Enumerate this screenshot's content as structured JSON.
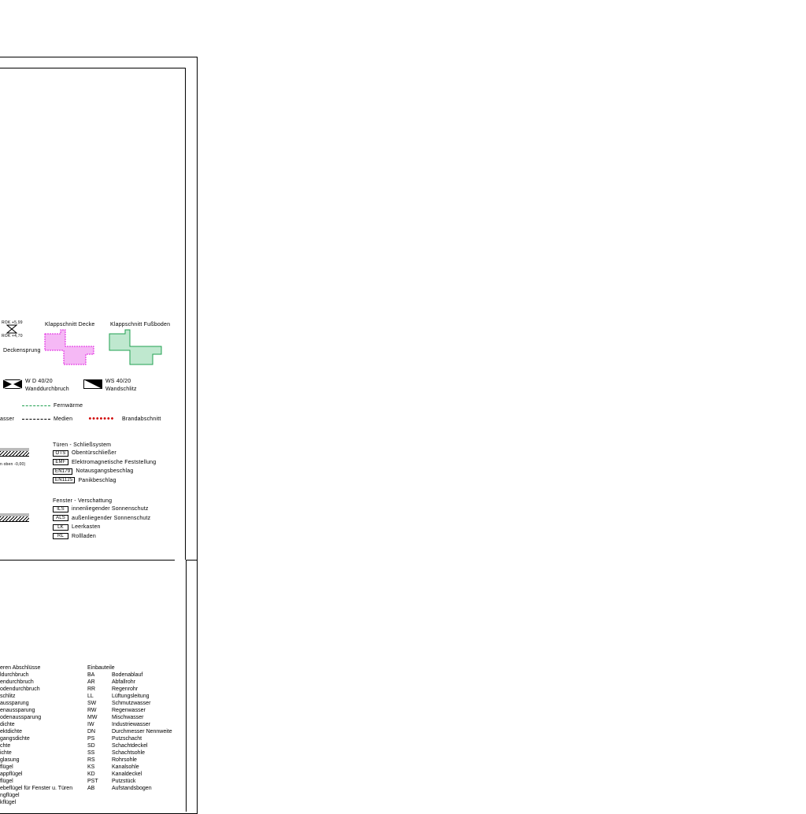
{
  "symbols": {
    "level_top": "ROK +5,99",
    "level_bottom": "ROK +4,70",
    "deckensprung": "Deckensprung",
    "klappschnitt_decke": "Klappschnitt Decke",
    "klappschnitt_fussboden": "Klappschnitt Fußboden",
    "wd": {
      "code": "W D 40/20",
      "label": "Wanddurchbruch"
    },
    "ws": {
      "code": "WS 40/20",
      "label": "Wandschlitz"
    },
    "fernwaerme": "Fernwärme",
    "wasser_fragment": "asser",
    "medien": "Medien",
    "brandabschnitt": "Brandabschnitt",
    "floor_note_fragment": "n oben -0,00)",
    "colors": {
      "decke": "#f5b8f5",
      "decke_stroke": "#e020e0",
      "fussboden": "#bfe8cf",
      "fussboden_stroke": "#20a050",
      "brand": "#d00000",
      "fernwaerme": "#20a050"
    }
  },
  "tueren": {
    "title": "Türen - Schließsystem",
    "items": [
      {
        "code": "OTS",
        "label": "Obentürschließer"
      },
      {
        "code": "EMF",
        "label": "Elektromagnetische Feststellung"
      },
      {
        "code": "EN179",
        "label": "Notausgangsbeschlag"
      },
      {
        "code": "EN1125",
        "label": "Panikbeschlag"
      }
    ]
  },
  "fenster": {
    "title": "Fenster - Verschattung",
    "items": [
      {
        "code": "ILS",
        "label": "innenliegender Sonnenschutz"
      },
      {
        "code": "ALS",
        "label": "außenliegender Sonnenschutz"
      },
      {
        "code": "LK",
        "label": "Leerkasten"
      },
      {
        "code": "RL",
        "label": "Rollladen"
      }
    ]
  },
  "abschluesse": [
    "eren Abschlüsse",
    "ldurchbruch",
    "endurchbruch",
    "odendurchbruch",
    "schlitz",
    "aussparung",
    "enaussparung",
    "odenaussparung",
    "dichte",
    "ektdichte",
    "gangsdichte",
    "chte",
    "ichte",
    "glasung",
    "flügel",
    "appflügel",
    "flügel",
    "ebeflügel für Fenster u. Türen",
    "ngflügel",
    "kflügel"
  ],
  "einbauteile": {
    "title": "Einbauteile",
    "items": [
      [
        "BA",
        "Bodenablauf"
      ],
      [
        "AR",
        "Abfallrohr"
      ],
      [
        "RR",
        "Regenrohr"
      ],
      [
        "LL",
        "Lüftungsleitung"
      ],
      [
        "SW",
        "Schmutzwasser"
      ],
      [
        "RW",
        "Regenwasser"
      ],
      [
        "MW",
        "Mischwasser"
      ],
      [
        "IW",
        "Industriewasser"
      ],
      [
        "DN",
        "Durchmesser Nennweite"
      ],
      [
        "PS",
        "Putzschacht"
      ],
      [
        "SD",
        "Schachtdeckel"
      ],
      [
        "SS",
        "Schachtsohle"
      ],
      [
        "RS",
        "Rohrsohle"
      ],
      [
        "KS",
        "Kanalsohle"
      ],
      [
        "KD",
        "Kanaldeckel"
      ],
      [
        "PST",
        "Putzstück"
      ],
      [
        "AB",
        "Aufstandsbogen"
      ]
    ]
  }
}
